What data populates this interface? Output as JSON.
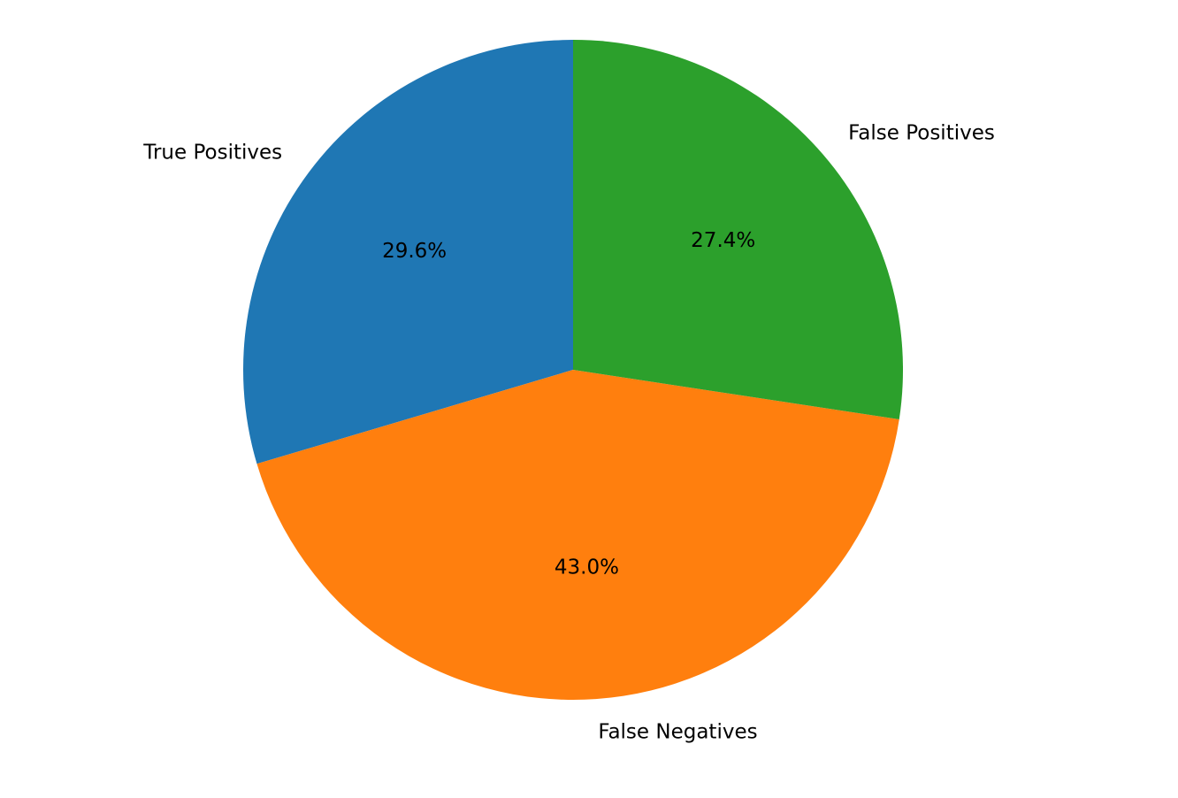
{
  "chart_data": {
    "type": "pie",
    "title": "",
    "start_angle_deg": 90,
    "direction": "counterclockwise",
    "slices": [
      {
        "label": "True Positives",
        "value": 29.6,
        "percent_label": "29.6%",
        "color": "#1f77b4"
      },
      {
        "label": "False Negatives",
        "value": 43.0,
        "percent_label": "43.0%",
        "color": "#ff7f0e"
      },
      {
        "label": "False Positives",
        "value": 27.4,
        "percent_label": "27.4%",
        "color": "#2ca02c"
      }
    ],
    "legend": "none"
  }
}
